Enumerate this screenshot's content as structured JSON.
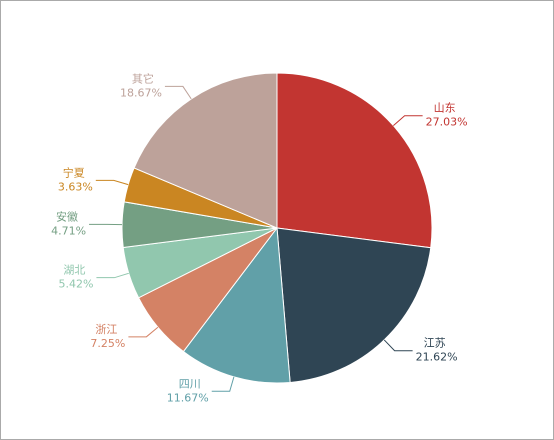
{
  "chart_data": {
    "type": "pie",
    "categories": [
      "山东",
      "江苏",
      "四川",
      "浙江",
      "湖北",
      "安徽",
      "宁夏",
      "其它"
    ],
    "values": [
      27.03,
      21.62,
      11.67,
      7.25,
      5.42,
      4.71,
      3.63,
      18.67
    ],
    "value_labels": [
      "27.03%",
      "21.62%",
      "11.67%",
      "7.25%",
      "5.42%",
      "4.71%",
      "3.63%",
      "18.67%"
    ],
    "colors": [
      "#c23531",
      "#2f4554",
      "#61a0a8",
      "#d48265",
      "#91c7ae",
      "#749f83",
      "#ca8622",
      "#bda29a"
    ]
  }
}
